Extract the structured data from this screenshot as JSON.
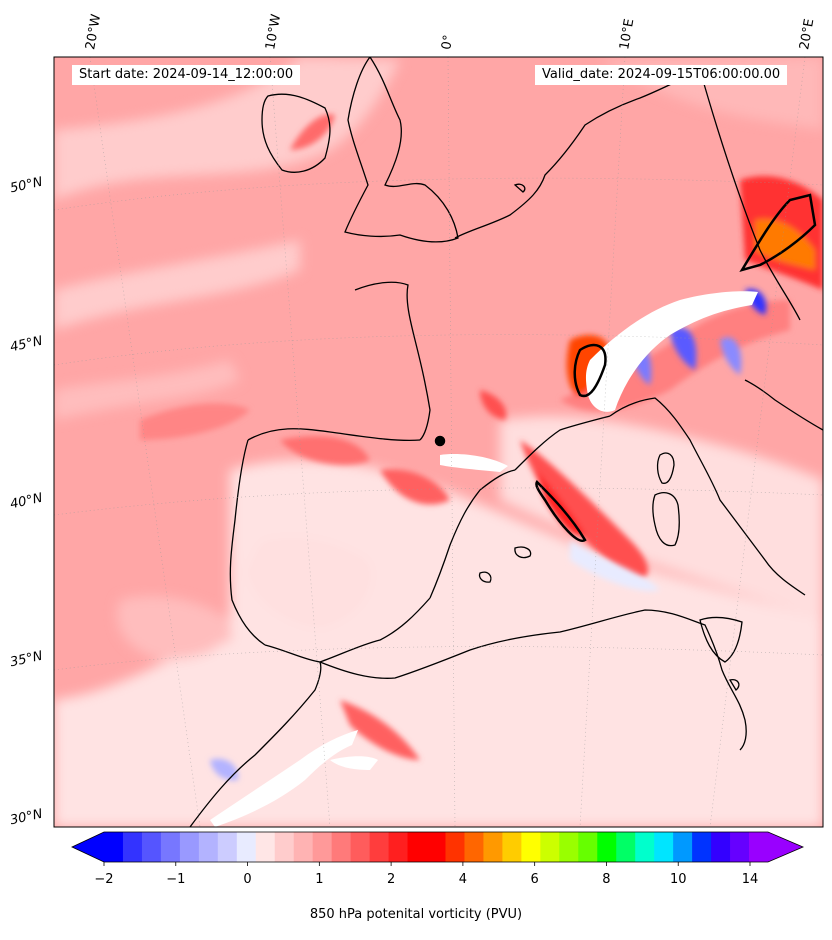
{
  "header": {
    "start_date": "Start date: 2024-09-14_12:00:00",
    "valid_date": "Valid_date: 2024-09-15T06:00:00.00"
  },
  "longitude_labels": [
    "20°W",
    "10°W",
    "0°",
    "10°E",
    "20°E"
  ],
  "latitude_labels": [
    "50°N",
    "45°N",
    "40°N",
    "35°N",
    "30°N"
  ],
  "colorbar": {
    "title": "850 hPa potenital vorticity (PVU)",
    "tick_labels": [
      "-2",
      "-1",
      "0",
      "1",
      "2",
      "4",
      "6",
      "8",
      "10",
      "14"
    ],
    "colors": [
      "#0000ff",
      "#3333ff",
      "#5555ff",
      "#7777ff",
      "#9999ff",
      "#b3b3ff",
      "#ccccff",
      "#e8ebff",
      "#ffe6e6",
      "#ffcccc",
      "#ffb3b3",
      "#ff9999",
      "#ff7a7a",
      "#ff5c5c",
      "#ff3d3d",
      "#ff1f1f",
      "#ff0000",
      "#ff0000",
      "#ff3300",
      "#ff6600",
      "#ff9900",
      "#ffcc00",
      "#ffff00",
      "#ccff00",
      "#99ff00",
      "#66ff00",
      "#00ff00",
      "#00ff66",
      "#00ffcc",
      "#00e5ff",
      "#0099ff",
      "#0033ff",
      "#3300ff",
      "#6600ff",
      "#9900ff"
    ],
    "extend_low_color": "#0000ff",
    "extend_high_color": "#9900ff"
  },
  "map": {
    "background_color": "#ffa6a6",
    "coast_color": "#000000"
  }
}
